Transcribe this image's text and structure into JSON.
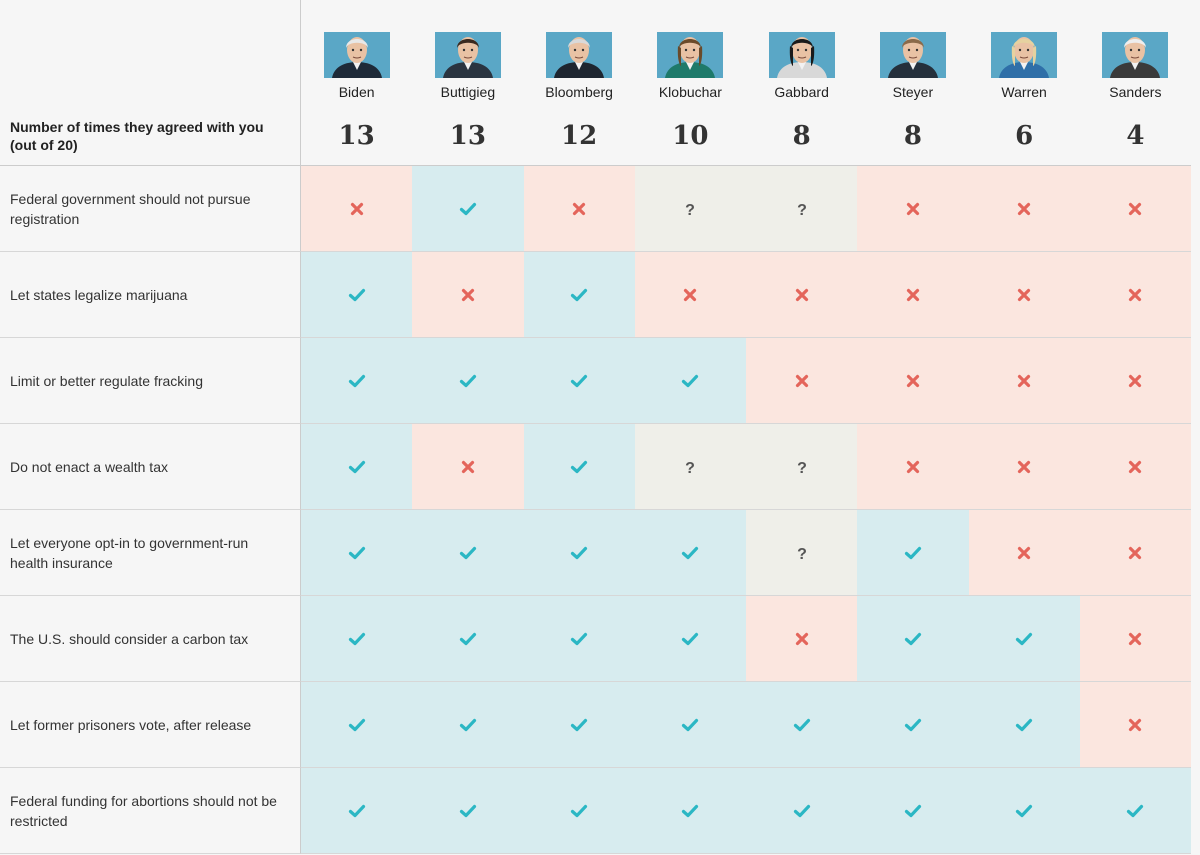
{
  "header": {
    "count_label": "Number of times they agreed with you (out of 20)"
  },
  "colors": {
    "agree_bg": "#d7ecef",
    "disagree_bg": "#fbe6df",
    "unknown_bg": "#efefe9",
    "agree_mark": "#2bb7c4",
    "disagree_mark": "#e4655b",
    "unknown_mark": "#555555"
  },
  "chart_data": {
    "type": "table",
    "candidates": [
      {
        "name": "Biden",
        "agreed": "13"
      },
      {
        "name": "Buttigieg",
        "agreed": "13"
      },
      {
        "name": "Bloomberg",
        "agreed": "12"
      },
      {
        "name": "Klobuchar",
        "agreed": "10"
      },
      {
        "name": "Gabbard",
        "agreed": "8"
      },
      {
        "name": "Steyer",
        "agreed": "8"
      },
      {
        "name": "Warren",
        "agreed": "6"
      },
      {
        "name": "Sanders",
        "agreed": "4"
      }
    ],
    "rows": [
      {
        "question": "Federal government should not pursue registration",
        "answers": [
          "no",
          "yes",
          "no",
          "unknown",
          "unknown",
          "no",
          "no",
          "no"
        ]
      },
      {
        "question": "Let states legalize marijuana",
        "answers": [
          "yes",
          "no",
          "yes",
          "no",
          "no",
          "no",
          "no",
          "no"
        ]
      },
      {
        "question": "Limit or better regulate fracking",
        "answers": [
          "yes",
          "yes",
          "yes",
          "yes",
          "no",
          "no",
          "no",
          "no"
        ]
      },
      {
        "question": "Do not enact a wealth tax",
        "answers": [
          "yes",
          "no",
          "yes",
          "unknown",
          "unknown",
          "no",
          "no",
          "no"
        ]
      },
      {
        "question": "Let everyone opt-in to government-run health insurance",
        "answers": [
          "yes",
          "yes",
          "yes",
          "yes",
          "unknown",
          "yes",
          "no",
          "no"
        ]
      },
      {
        "question": "The U.S. should consider a carbon tax",
        "answers": [
          "yes",
          "yes",
          "yes",
          "yes",
          "no",
          "yes",
          "yes",
          "no"
        ]
      },
      {
        "question": "Let former prisoners vote, after release",
        "answers": [
          "yes",
          "yes",
          "yes",
          "yes",
          "yes",
          "yes",
          "yes",
          "no"
        ]
      },
      {
        "question": "Federal funding for abortions should not be restricted",
        "answers": [
          "yes",
          "yes",
          "yes",
          "yes",
          "yes",
          "yes",
          "yes",
          "yes"
        ]
      }
    ]
  }
}
